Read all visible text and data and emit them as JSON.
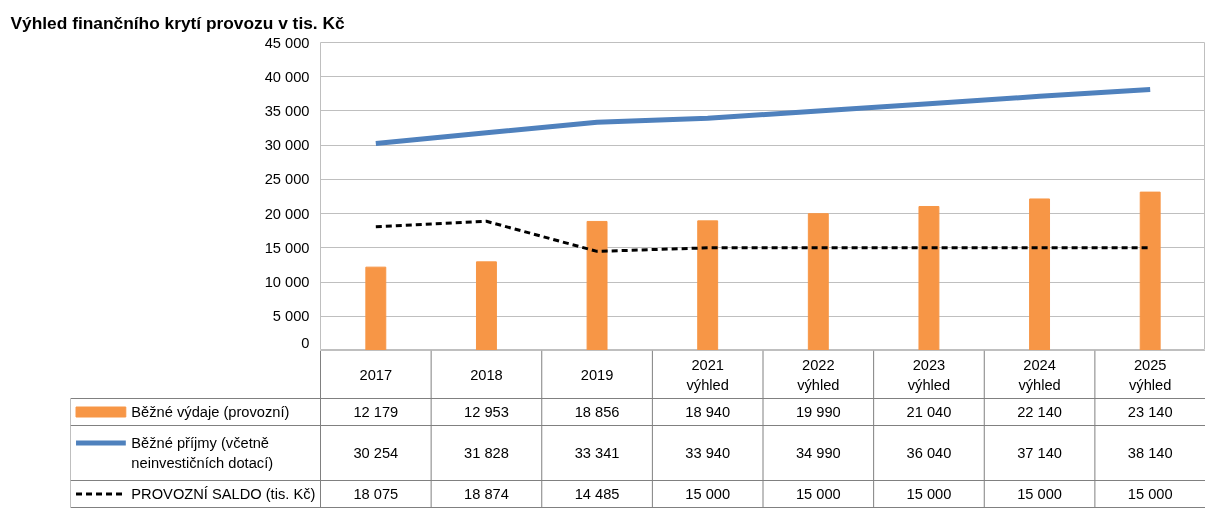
{
  "chart_data": {
    "type": "bar",
    "title": "Výhled finančního krytí provozu v tis. Kč",
    "categories": [
      "2017",
      "2018",
      "2019",
      "2021\nvýhled",
      "2022\nvýhled",
      "2023\nvýhled",
      "2024\nvýhled",
      "2025\nvýhled"
    ],
    "series": [
      {
        "name": "Běžné výdaje (provozní)",
        "color": "#f79646",
        "values": [
          12179,
          12953,
          18856,
          18940,
          19990,
          21040,
          22140,
          23140
        ]
      },
      {
        "name": "Běžné příjmy (včetně\nneinvestičních dotací)",
        "type": "line",
        "color": "#4f81bd",
        "line_style": "solid",
        "values": [
          30254,
          31828,
          33341,
          33940,
          34990,
          36040,
          37140,
          38140
        ]
      },
      {
        "name": "PROVOZNÍ SALDO (tis. Kč)",
        "type": "line",
        "color": "#000000",
        "line_style": "dashed",
        "values": [
          18075,
          18874,
          14485,
          15000,
          15000,
          15000,
          15000,
          15000
        ]
      }
    ],
    "ylim": [
      0,
      45000
    ],
    "yticks": [
      {
        "value": 0,
        "label": "0"
      },
      {
        "value": 5000,
        "label": "5 000"
      },
      {
        "value": 10000,
        "label": "10 000"
      },
      {
        "value": 15000,
        "label": "15 000"
      },
      {
        "value": 20000,
        "label": "20 000"
      },
      {
        "value": 25000,
        "label": "25 000"
      },
      {
        "value": 30000,
        "label": "30 000"
      },
      {
        "value": 35000,
        "label": "35 000"
      },
      {
        "value": 40000,
        "label": "40 000"
      },
      {
        "value": 45000,
        "label": "45 000"
      }
    ],
    "grid": "y",
    "legend": "bottom",
    "data_labels": true,
    "marker": "none"
  }
}
